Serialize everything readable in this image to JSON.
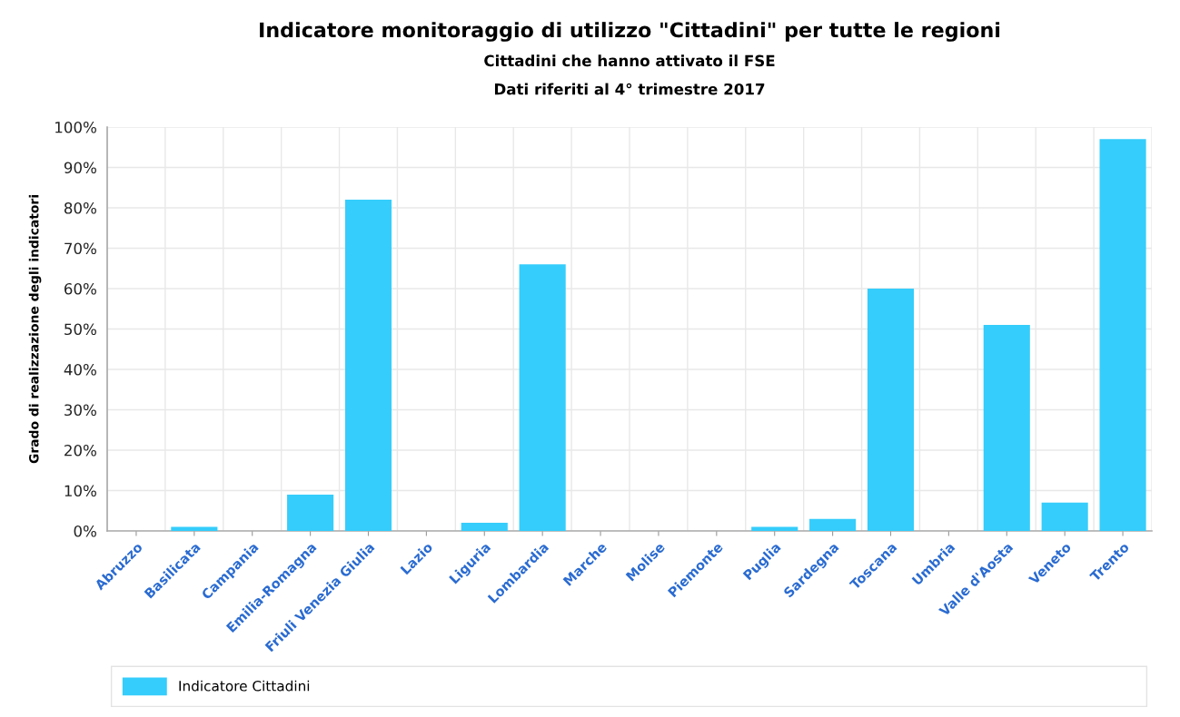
{
  "chart_data": {
    "type": "bar",
    "title": "Indicatore monitoraggio di utilizzo \"Cittadini\" per tutte le regioni",
    "subtitle": "Cittadini che hanno attivato il FSE\nDati riferiti al 4° trimestre 2017",
    "ylabel": "Grado di realizzazione degli indicatori",
    "categories": [
      "Abruzzo",
      "Basilicata",
      "Campania",
      "Emilia-Romagna",
      "Friuli Venezia Giulia",
      "Lazio",
      "Liguria",
      "Lombardia",
      "Marche",
      "Molise",
      "Piemonte",
      "Puglia",
      "Sardegna",
      "Toscana",
      "Umbria",
      "Valle d'Aosta",
      "Veneto",
      "Trento"
    ],
    "series": [
      {
        "name": "Indicatore Cittadini",
        "color": "#35cdfb",
        "values": [
          0,
          1,
          0,
          9,
          82,
          0,
          2,
          66,
          0,
          0,
          0,
          1,
          3,
          60,
          0,
          51,
          7,
          97
        ]
      }
    ],
    "ylim": [
      0,
      100
    ],
    "yticks": [
      {
        "value": 0,
        "label": "0%"
      },
      {
        "value": 10,
        "label": "10%"
      },
      {
        "value": 20,
        "label": "20%"
      },
      {
        "value": 30,
        "label": "30%"
      },
      {
        "value": 40,
        "label": "40%"
      },
      {
        "value": 50,
        "label": "50%"
      },
      {
        "value": 60,
        "label": "60%"
      },
      {
        "value": 70,
        "label": "70%"
      },
      {
        "value": 80,
        "label": "80%"
      },
      {
        "value": 90,
        "label": "90%"
      },
      {
        "value": 100,
        "label": "100%"
      }
    ],
    "grid": true,
    "legend": "bottom"
  }
}
